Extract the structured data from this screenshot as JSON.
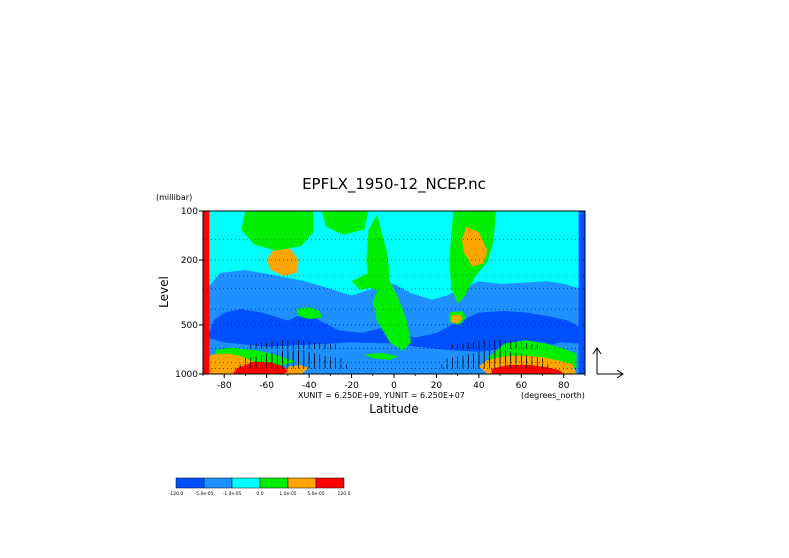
{
  "chart_data": {
    "type": "heatmap",
    "title": "EPFLX_1950-12_NCEP.nc",
    "ylabel": "Level",
    "yunit": "(millibar)",
    "xlabel": "Latitude",
    "xunit_note": "(degrees_north)",
    "scale_note": "XUNIT = 6.250E+09, YUNIT = 6.250E+07",
    "xlim": [
      -90,
      90
    ],
    "ylim": [
      1000,
      100
    ],
    "y_scale": "log",
    "x_ticks": [
      "-80",
      "-60",
      "-40",
      "-20",
      "0",
      "20",
      "40",
      "60",
      "80"
    ],
    "x_tick_values": [
      -80,
      -60,
      -40,
      -20,
      0,
      20,
      40,
      60,
      80
    ],
    "y_ticks": [
      "100",
      "200",
      "500",
      "1000"
    ],
    "y_tick_values": [
      100,
      200,
      500,
      1000
    ],
    "vector_overlay": "EP flux arrows",
    "colorbar": {
      "colors": [
        "#0050ff",
        "#1e90ff",
        "#00ffff",
        "#00ee00",
        "#ffa500",
        "#ff0000"
      ],
      "labels": [
        "-120.0",
        "-5.0e-05",
        "-1.0e-05",
        "0.0",
        "1.0e-05",
        "5.0e-05",
        "120.0"
      ]
    },
    "regions": [
      {
        "cls": 2,
        "pts": [
          [
            -90,
            100
          ],
          [
            90,
            100
          ],
          [
            90,
            1000
          ],
          [
            -90,
            1000
          ]
        ]
      },
      {
        "cls": 1,
        "pts": [
          [
            -88,
            300
          ],
          [
            -82,
            240
          ],
          [
            -70,
            230
          ],
          [
            -55,
            250
          ],
          [
            -42,
            270
          ],
          [
            -30,
            300
          ],
          [
            -20,
            330
          ],
          [
            -10,
            300
          ],
          [
            0,
            280
          ],
          [
            8,
            320
          ],
          [
            18,
            350
          ],
          [
            25,
            330
          ],
          [
            32,
            300
          ],
          [
            40,
            270
          ],
          [
            50,
            280
          ],
          [
            62,
            275
          ],
          [
            72,
            270
          ],
          [
            80,
            280
          ],
          [
            88,
            300
          ],
          [
            88,
            1000
          ],
          [
            -88,
            1000
          ]
        ]
      },
      {
        "cls": 0,
        "pts": [
          [
            -85,
            470
          ],
          [
            -80,
            420
          ],
          [
            -72,
            400
          ],
          [
            -62,
            420
          ],
          [
            -50,
            470
          ],
          [
            -42,
            420
          ],
          [
            -35,
            470
          ],
          [
            -26,
            540
          ],
          [
            -15,
            560
          ],
          [
            -5,
            520
          ],
          [
            2,
            560
          ],
          [
            10,
            600
          ],
          [
            20,
            560
          ],
          [
            30,
            480
          ],
          [
            40,
            420
          ],
          [
            52,
            410
          ],
          [
            62,
            420
          ],
          [
            72,
            440
          ],
          [
            82,
            470
          ],
          [
            88,
            520
          ],
          [
            88,
            650
          ],
          [
            78,
            640
          ],
          [
            68,
            700
          ],
          [
            52,
            700
          ],
          [
            40,
            730
          ],
          [
            30,
            720
          ],
          [
            20,
            700
          ],
          [
            10,
            680
          ],
          [
            0,
            650
          ],
          [
            -20,
            640
          ],
          [
            -40,
            660
          ],
          [
            -60,
            680
          ],
          [
            -80,
            640
          ],
          [
            -88,
            600
          ]
        ]
      },
      {
        "cls": 3,
        "pts": [
          [
            -70,
            100
          ],
          [
            -38,
            100
          ],
          [
            -38,
            135
          ],
          [
            -44,
            165
          ],
          [
            -56,
            175
          ],
          [
            -66,
            160
          ],
          [
            -72,
            130
          ]
        ]
      },
      {
        "cls": 3,
        "pts": [
          [
            -34,
            100
          ],
          [
            -12,
            100
          ],
          [
            -14,
            130
          ],
          [
            -24,
            140
          ],
          [
            -32,
            125
          ]
        ]
      },
      {
        "cls": 3,
        "pts": [
          [
            -20,
            270
          ],
          [
            -12,
            240
          ],
          [
            -4,
            215
          ],
          [
            -3,
            250
          ],
          [
            -8,
            290
          ],
          [
            -16,
            305
          ]
        ]
      },
      {
        "cls": 3,
        "pts": [
          [
            -4,
            240
          ],
          [
            2,
            340
          ],
          [
            6,
            470
          ],
          [
            8,
            640
          ],
          [
            4,
            720
          ],
          [
            -2,
            640
          ],
          [
            -8,
            470
          ],
          [
            -10,
            360
          ]
        ]
      },
      {
        "cls": 3,
        "pts": [
          [
            -8,
            105
          ],
          [
            -3,
            185
          ],
          [
            -2,
            255
          ],
          [
            -6,
            320
          ],
          [
            -12,
            290
          ],
          [
            -13,
            200
          ],
          [
            -12,
            130
          ]
        ]
      },
      {
        "cls": 3,
        "pts": [
          [
            28,
            100
          ],
          [
            48,
            100
          ],
          [
            47,
            150
          ],
          [
            44,
            205
          ],
          [
            38,
            255
          ],
          [
            33,
            340
          ],
          [
            30,
            370
          ],
          [
            27,
            300
          ],
          [
            26,
            200
          ]
        ]
      },
      {
        "cls": 3,
        "pts": [
          [
            -46,
            400
          ],
          [
            -40,
            390
          ],
          [
            -35,
            410
          ],
          [
            -34,
            450
          ],
          [
            -40,
            460
          ],
          [
            -45,
            440
          ]
        ]
      },
      {
        "cls": 3,
        "pts": [
          [
            26,
            420
          ],
          [
            32,
            410
          ],
          [
            34,
            450
          ],
          [
            31,
            500
          ],
          [
            26,
            480
          ]
        ]
      },
      {
        "cls": 3,
        "pts": [
          [
            -84,
            710
          ],
          [
            -76,
            690
          ],
          [
            -64,
            720
          ],
          [
            -56,
            760
          ],
          [
            -46,
            840
          ],
          [
            -52,
            880
          ],
          [
            -64,
            880
          ],
          [
            -74,
            870
          ],
          [
            -84,
            840
          ]
        ]
      },
      {
        "cls": 3,
        "pts": [
          [
            52,
            650
          ],
          [
            62,
            620
          ],
          [
            72,
            650
          ],
          [
            80,
            700
          ],
          [
            86,
            750
          ],
          [
            86,
            920
          ],
          [
            70,
            880
          ],
          [
            58,
            840
          ],
          [
            50,
            820
          ],
          [
            44,
            800
          ]
        ]
      },
      {
        "cls": 3,
        "pts": [
          [
            -14,
            760
          ],
          [
            -6,
            740
          ],
          [
            2,
            780
          ],
          [
            -2,
            820
          ],
          [
            -10,
            800
          ]
        ]
      },
      {
        "cls": 4,
        "pts": [
          [
            -57,
            175
          ],
          [
            -49,
            170
          ],
          [
            -45,
            200
          ],
          [
            -46,
            240
          ],
          [
            -52,
            250
          ],
          [
            -58,
            230
          ],
          [
            -60,
            200
          ]
        ]
      },
      {
        "cls": 4,
        "pts": [
          [
            34,
            125
          ],
          [
            40,
            135
          ],
          [
            44,
            175
          ],
          [
            42,
            210
          ],
          [
            37,
            220
          ],
          [
            33,
            180
          ],
          [
            32,
            150
          ]
        ]
      },
      {
        "cls": 4,
        "pts": [
          [
            27,
            440
          ],
          [
            31,
            430
          ],
          [
            32,
            460
          ],
          [
            30,
            490
          ],
          [
            27,
            480
          ]
        ]
      },
      {
        "cls": 4,
        "pts": [
          [
            -86,
            760
          ],
          [
            -78,
            750
          ],
          [
            -72,
            780
          ],
          [
            -66,
            840
          ],
          [
            -62,
            900
          ],
          [
            -68,
            1000
          ],
          [
            -88,
            1000
          ],
          [
            -88,
            820
          ]
        ]
      },
      {
        "cls": 4,
        "pts": [
          [
            44,
            820
          ],
          [
            52,
            780
          ],
          [
            60,
            770
          ],
          [
            70,
            790
          ],
          [
            78,
            830
          ],
          [
            84,
            870
          ],
          [
            86,
            1000
          ],
          [
            44,
            1000
          ],
          [
            40,
            900
          ]
        ]
      },
      {
        "cls": 4,
        "pts": [
          [
            -50,
            900
          ],
          [
            -44,
            880
          ],
          [
            -40,
            920
          ],
          [
            -44,
            1000
          ],
          [
            -52,
            1000
          ]
        ]
      },
      {
        "cls": 5,
        "pts": [
          [
            -90,
            100
          ],
          [
            -87,
            100
          ],
          [
            -87,
            1000
          ],
          [
            -90,
            1000
          ]
        ]
      },
      {
        "cls": 5,
        "pts": [
          [
            -74,
            920
          ],
          [
            -66,
            840
          ],
          [
            -58,
            850
          ],
          [
            -52,
            900
          ],
          [
            -50,
            960
          ],
          [
            -52,
            1000
          ],
          [
            -76,
            1000
          ]
        ]
      },
      {
        "cls": 5,
        "pts": [
          [
            46,
            930
          ],
          [
            54,
            880
          ],
          [
            64,
            880
          ],
          [
            72,
            910
          ],
          [
            78,
            950
          ],
          [
            80,
            1000
          ],
          [
            46,
            1000
          ]
        ]
      },
      {
        "cls": 0,
        "pts": [
          [
            87,
            100
          ],
          [
            90,
            100
          ],
          [
            90,
            1000
          ],
          [
            87,
            1000
          ]
        ]
      }
    ]
  }
}
